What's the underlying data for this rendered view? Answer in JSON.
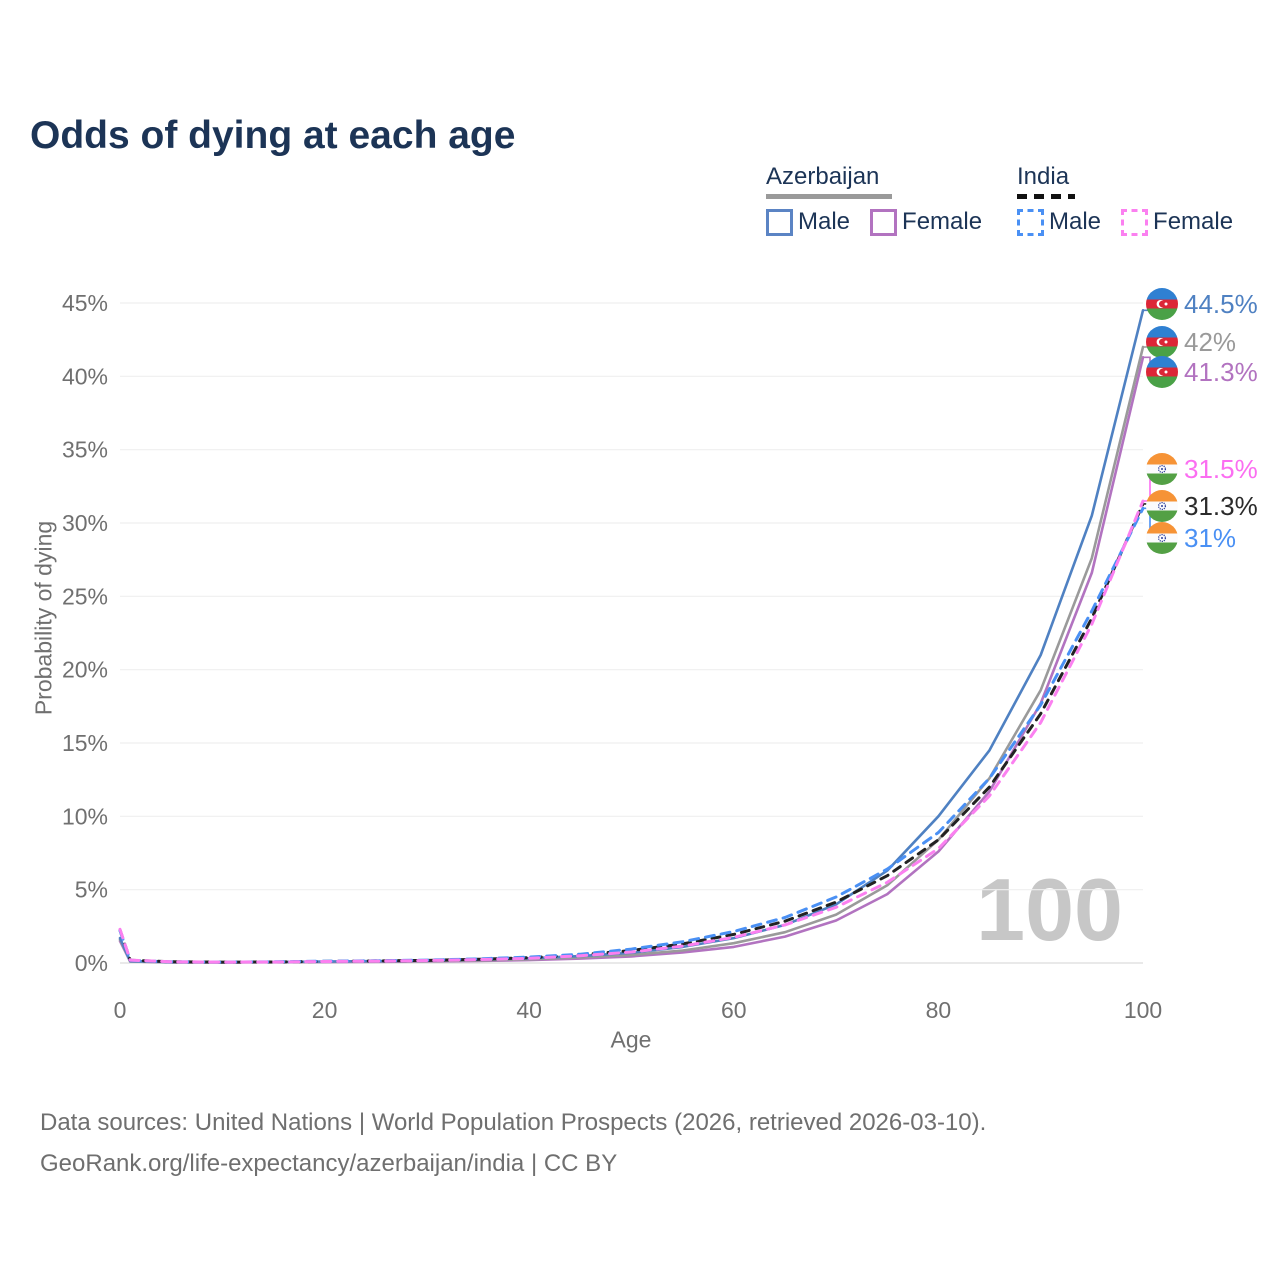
{
  "page": {
    "title": "Odds of dying at each age",
    "footer_line1": "Data sources: United Nations | World Population Prospects (2026, retrieved 2026-03-10).",
    "footer_line2": "GeoRank.org/life-expectancy/azerbaijan/india | CC BY"
  },
  "legend": {
    "groups": [
      {
        "name": "Azerbaijan",
        "line_style": "solid",
        "underline_color": "#9a9a9a",
        "items": [
          {
            "label": "Male",
            "color": "#5b84c4"
          },
          {
            "label": "Female",
            "color": "#b273c0"
          }
        ]
      },
      {
        "name": "India",
        "line_style": "dashed",
        "underline_color": "#111111",
        "items": [
          {
            "label": "Male",
            "color": "#4a90f4"
          },
          {
            "label": "Female",
            "color": "#fb80f0"
          }
        ]
      }
    ]
  },
  "chart_data": {
    "type": "line",
    "title": "Odds of dying at each age",
    "xlabel": "Age",
    "ylabel": "Probability of dying",
    "xlim": [
      0,
      100
    ],
    "ylim": [
      0,
      45
    ],
    "x_ticks": [
      0,
      20,
      40,
      60,
      80,
      100
    ],
    "y_ticks": [
      0,
      5,
      10,
      15,
      20,
      25,
      30,
      35,
      40,
      45
    ],
    "y_tick_suffix": "%",
    "grid": "horizontal-only",
    "legend_position": "top-right",
    "age_indicator": "100",
    "series": [
      {
        "id": "azerbaijan-female",
        "name": "Azerbaijan Female",
        "country": "Azerbaijan",
        "sex": "Female",
        "color": "#b273c0",
        "dash": null,
        "points": [
          [
            0,
            1.5
          ],
          [
            1,
            0.1
          ],
          [
            5,
            0.04
          ],
          [
            10,
            0.04
          ],
          [
            15,
            0.05
          ],
          [
            20,
            0.06
          ],
          [
            25,
            0.08
          ],
          [
            30,
            0.1
          ],
          [
            35,
            0.14
          ],
          [
            40,
            0.2
          ],
          [
            45,
            0.3
          ],
          [
            50,
            0.45
          ],
          [
            55,
            0.72
          ],
          [
            60,
            1.1
          ],
          [
            65,
            1.8
          ],
          [
            70,
            2.9
          ],
          [
            75,
            4.7
          ],
          [
            80,
            7.6
          ],
          [
            85,
            11.7
          ],
          [
            90,
            17.7
          ],
          [
            95,
            26.6
          ],
          [
            100,
            41.3
          ]
        ]
      },
      {
        "id": "azerbaijan-both",
        "name": "Azerbaijan Both sexes",
        "country": "Azerbaijan",
        "sex": "Both",
        "color": "#9a9a9a",
        "dash": null,
        "points": [
          [
            0,
            1.6
          ],
          [
            1,
            0.11
          ],
          [
            5,
            0.05
          ],
          [
            10,
            0.045
          ],
          [
            15,
            0.06
          ],
          [
            20,
            0.08
          ],
          [
            25,
            0.1
          ],
          [
            30,
            0.13
          ],
          [
            35,
            0.18
          ],
          [
            40,
            0.25
          ],
          [
            45,
            0.38
          ],
          [
            50,
            0.55
          ],
          [
            55,
            0.85
          ],
          [
            60,
            1.35
          ],
          [
            65,
            2.1
          ],
          [
            70,
            3.3
          ],
          [
            75,
            5.3
          ],
          [
            80,
            8.4
          ],
          [
            85,
            12.6
          ],
          [
            90,
            18.6
          ],
          [
            95,
            27.6
          ],
          [
            100,
            42.0
          ]
        ]
      },
      {
        "id": "azerbaijan-male",
        "name": "Azerbaijan Male",
        "country": "Azerbaijan",
        "sex": "Male",
        "color": "#4f81c2",
        "dash": null,
        "points": [
          [
            0,
            1.7
          ],
          [
            1,
            0.12
          ],
          [
            5,
            0.06
          ],
          [
            10,
            0.05
          ],
          [
            15,
            0.07
          ],
          [
            20,
            0.1
          ],
          [
            25,
            0.13
          ],
          [
            30,
            0.17
          ],
          [
            35,
            0.23
          ],
          [
            40,
            0.32
          ],
          [
            45,
            0.47
          ],
          [
            50,
            0.7
          ],
          [
            55,
            1.1
          ],
          [
            60,
            1.7
          ],
          [
            65,
            2.6
          ],
          [
            70,
            4.0
          ],
          [
            75,
            6.3
          ],
          [
            80,
            10.0
          ],
          [
            85,
            14.5
          ],
          [
            90,
            21.0
          ],
          [
            95,
            30.5
          ],
          [
            100,
            44.5
          ]
        ]
      },
      {
        "id": "india-both",
        "name": "India Both sexes",
        "country": "India",
        "sex": "Both",
        "color": "#222222",
        "dash": "8 7",
        "points": [
          [
            0,
            2.25
          ],
          [
            1,
            0.19
          ],
          [
            5,
            0.08
          ],
          [
            10,
            0.06
          ],
          [
            15,
            0.07
          ],
          [
            20,
            0.11
          ],
          [
            25,
            0.14
          ],
          [
            30,
            0.18
          ],
          [
            35,
            0.25
          ],
          [
            40,
            0.36
          ],
          [
            45,
            0.55
          ],
          [
            50,
            0.85
          ],
          [
            55,
            1.3
          ],
          [
            60,
            1.95
          ],
          [
            65,
            2.85
          ],
          [
            70,
            4.15
          ],
          [
            75,
            5.95
          ],
          [
            80,
            8.4
          ],
          [
            85,
            12.0
          ],
          [
            90,
            17.0
          ],
          [
            95,
            23.5
          ],
          [
            100,
            31.3
          ]
        ]
      },
      {
        "id": "india-male",
        "name": "India Male",
        "country": "India",
        "sex": "Male",
        "color": "#4a90f4",
        "dash": "9 7",
        "points": [
          [
            0,
            2.2
          ],
          [
            1,
            0.18
          ],
          [
            5,
            0.08
          ],
          [
            10,
            0.06
          ],
          [
            15,
            0.08
          ],
          [
            20,
            0.12
          ],
          [
            25,
            0.15
          ],
          [
            30,
            0.2
          ],
          [
            35,
            0.28
          ],
          [
            40,
            0.4
          ],
          [
            45,
            0.6
          ],
          [
            50,
            0.95
          ],
          [
            55,
            1.45
          ],
          [
            60,
            2.15
          ],
          [
            65,
            3.1
          ],
          [
            70,
            4.5
          ],
          [
            75,
            6.4
          ],
          [
            80,
            8.9
          ],
          [
            85,
            12.6
          ],
          [
            90,
            17.6
          ],
          [
            95,
            24.0
          ],
          [
            100,
            31.0
          ]
        ]
      },
      {
        "id": "india-female",
        "name": "India Female",
        "country": "India",
        "sex": "Female",
        "color": "#fb80f0",
        "dash": "9 7",
        "points": [
          [
            0,
            2.3
          ],
          [
            1,
            0.2
          ],
          [
            5,
            0.08
          ],
          [
            10,
            0.06
          ],
          [
            15,
            0.07
          ],
          [
            20,
            0.1
          ],
          [
            25,
            0.13
          ],
          [
            30,
            0.17
          ],
          [
            35,
            0.23
          ],
          [
            40,
            0.32
          ],
          [
            45,
            0.5
          ],
          [
            50,
            0.75
          ],
          [
            55,
            1.15
          ],
          [
            60,
            1.75
          ],
          [
            65,
            2.6
          ],
          [
            70,
            3.8
          ],
          [
            75,
            5.5
          ],
          [
            80,
            7.8
          ],
          [
            85,
            11.4
          ],
          [
            90,
            16.4
          ],
          [
            95,
            23.1
          ],
          [
            100,
            31.5
          ]
        ]
      }
    ],
    "end_labels": [
      {
        "text": "44.5%",
        "value": 44.5,
        "color": "#4f81c2",
        "flag": "azerbaijan"
      },
      {
        "text": "42%",
        "value": 42.0,
        "color": "#9a9a9a",
        "flag": "azerbaijan"
      },
      {
        "text": "41.3%",
        "value": 41.3,
        "color": "#b273c0",
        "flag": "azerbaijan"
      },
      {
        "text": "31.5%",
        "value": 31.5,
        "color": "#fb6ef1",
        "flag": "india"
      },
      {
        "text": "31.3%",
        "value": 31.3,
        "color": "#2b2b2b",
        "flag": "india"
      },
      {
        "text": "31%",
        "value": 31.0,
        "color": "#4a90f4",
        "flag": "india"
      }
    ]
  }
}
